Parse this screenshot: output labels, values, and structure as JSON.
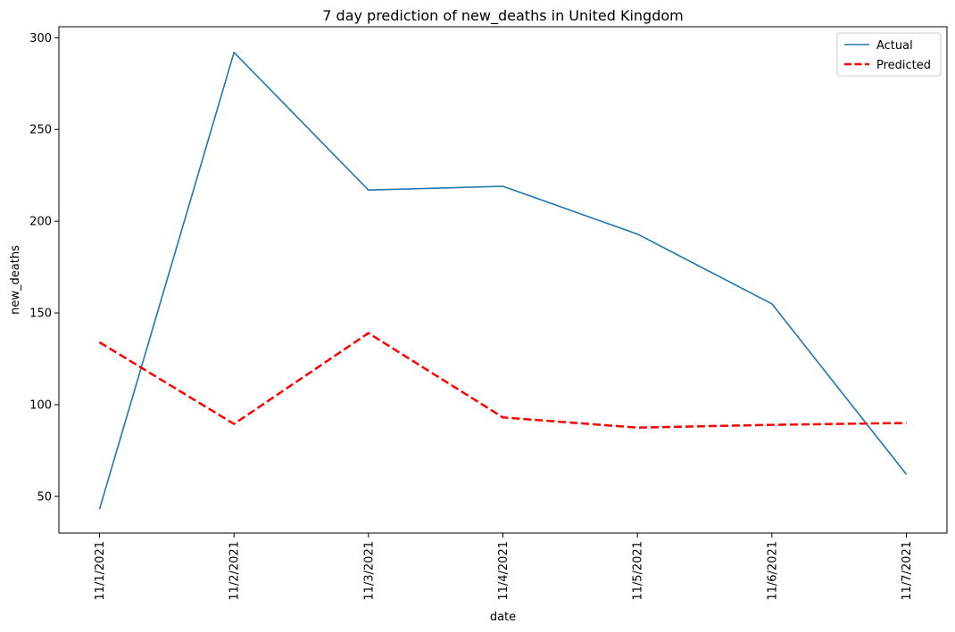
{
  "chart_data": {
    "type": "line",
    "title": "7 day prediction of new_deaths in United Kingdom",
    "xlabel": "date",
    "ylabel": "new_deaths",
    "categories": [
      "11/1/2021",
      "11/2/2021",
      "11/3/2021",
      "11/4/2021",
      "11/5/2021",
      "11/6/2021",
      "11/7/2021"
    ],
    "yticks": [
      50,
      100,
      150,
      200,
      250,
      300
    ],
    "ylim": [
      30,
      306
    ],
    "grid": false,
    "legend_position": "top-right",
    "series": [
      {
        "name": "Actual",
        "values": [
          43,
          292,
          217,
          219,
          193,
          155,
          62
        ],
        "color": "#1f77b4",
        "style": "solid"
      },
      {
        "name": "Predicted",
        "values": [
          134,
          89.5,
          139,
          93,
          87.5,
          89,
          90
        ],
        "color": "#ff0000",
        "style": "dashed"
      }
    ]
  }
}
